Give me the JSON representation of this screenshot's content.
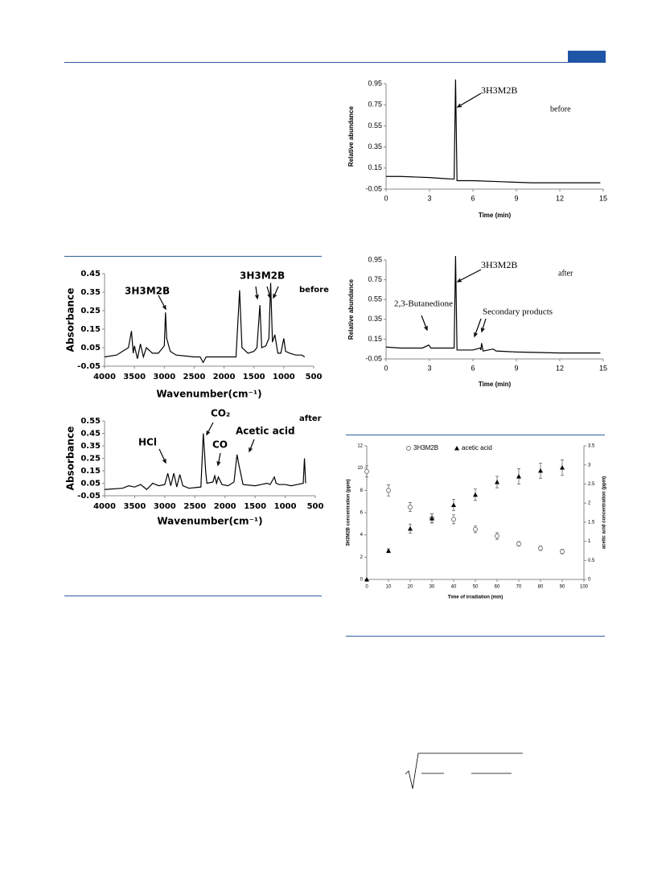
{
  "chart_data": [
    {
      "type": "line",
      "ylabel": "Absorbance",
      "xlabel": "Wavenumber(cm⁻¹)",
      "annotations": [
        "3H3M2B",
        "3H3M2B",
        "before"
      ],
      "xlim": [
        4000,
        500
      ],
      "xticks": [
        4000,
        3500,
        3000,
        2500,
        2000,
        1500,
        1000,
        500
      ],
      "ylim": [
        -0.05,
        0.45
      ],
      "yticks": [
        -0.05,
        0.05,
        0.15,
        0.25,
        0.35,
        0.45
      ],
      "x": [
        4000,
        3800,
        3700,
        3600,
        3550,
        3520,
        3500,
        3450,
        3400,
        3350,
        3300,
        3200,
        3100,
        3000,
        2980,
        2960,
        2900,
        2800,
        2500,
        2400,
        2350,
        2300,
        2000,
        1800,
        1740,
        1700,
        1600,
        1500,
        1450,
        1400,
        1370,
        1300,
        1250,
        1220,
        1190,
        1150,
        1100,
        1050,
        1000,
        970,
        900,
        800,
        700,
        650
      ],
      "series": [
        {
          "color": "#000000",
          "values": [
            0.0,
            0.01,
            0.03,
            0.05,
            0.14,
            0.02,
            0.06,
            -0.01,
            0.07,
            0.0,
            0.05,
            0.02,
            0.02,
            0.06,
            0.24,
            0.1,
            0.03,
            0.01,
            0.0,
            0.0,
            -0.03,
            0.0,
            0.0,
            0.0,
            0.36,
            0.05,
            0.02,
            0.03,
            0.05,
            0.28,
            0.05,
            0.06,
            0.1,
            0.4,
            0.08,
            0.12,
            0.02,
            0.02,
            0.1,
            0.03,
            0.02,
            0.01,
            0.01,
            0.0
          ]
        }
      ]
    },
    {
      "type": "line",
      "ylabel": "Absorbance",
      "xlabel": "Wavenumber(cm⁻¹)",
      "annotations": [
        "after",
        "CO₂",
        "CO",
        "HCl",
        "Acetic acid"
      ],
      "xlim": [
        4000,
        500
      ],
      "xticks": [
        4000,
        3500,
        3000,
        2500,
        2000,
        1500,
        1000,
        500
      ],
      "ylim": [
        -0.05,
        0.55
      ],
      "yticks": [
        -0.05,
        0.05,
        0.15,
        0.25,
        0.35,
        0.45,
        0.55
      ],
      "x": [
        4000,
        3700,
        3600,
        3500,
        3400,
        3300,
        3200,
        3100,
        3000,
        2950,
        2900,
        2850,
        2800,
        2750,
        2700,
        2600,
        2400,
        2360,
        2340,
        2320,
        2300,
        2200,
        2170,
        2140,
        2110,
        2050,
        1950,
        1850,
        1800,
        1770,
        1700,
        1500,
        1400,
        1300,
        1250,
        1180,
        1150,
        1100,
        1000,
        900,
        800,
        700,
        680,
        660
      ],
      "series": [
        {
          "color": "#000000",
          "values": [
            0.0,
            0.01,
            0.03,
            0.02,
            0.04,
            0.0,
            0.05,
            0.03,
            0.04,
            0.13,
            0.03,
            0.13,
            0.02,
            0.12,
            0.03,
            0.01,
            0.02,
            0.45,
            0.3,
            0.14,
            0.05,
            0.06,
            0.11,
            0.05,
            0.1,
            0.04,
            0.03,
            0.06,
            0.28,
            0.2,
            0.04,
            0.03,
            0.04,
            0.05,
            0.04,
            0.1,
            0.05,
            0.04,
            0.04,
            0.03,
            0.04,
            0.05,
            0.25,
            0.05
          ]
        }
      ]
    },
    {
      "type": "line",
      "ylabel": "Relative abundance",
      "xlabel": "Time (min)",
      "annotations": [
        "3H3M2B",
        "before"
      ],
      "xlim": [
        0,
        15
      ],
      "xticks": [
        0,
        3,
        6,
        9,
        12,
        15
      ],
      "ylim": [
        -0.05,
        0.95
      ],
      "yticks": [
        -0.05,
        0.15,
        0.35,
        0.55,
        0.75,
        0.95
      ],
      "x": [
        0,
        1,
        2,
        3,
        4,
        4.7,
        4.8,
        4.9,
        6,
        8,
        10,
        12,
        14.8
      ],
      "series": [
        {
          "color": "#000000",
          "values": [
            0.07,
            0.07,
            0.065,
            0.06,
            0.05,
            0.045,
            0.99,
            0.03,
            0.03,
            0.02,
            0.01,
            0.01,
            0.01
          ]
        }
      ]
    },
    {
      "type": "line",
      "ylabel": "Relative abundance",
      "xlabel": "Time (min)",
      "annotations": [
        "3H3M2B",
        "after",
        "2,3-Butanedione",
        "Secondary products"
      ],
      "xlim": [
        0,
        15
      ],
      "xticks": [
        0,
        3,
        6,
        9,
        12,
        15
      ],
      "ylim": [
        -0.05,
        0.95
      ],
      "yticks": [
        -0.05,
        0.15,
        0.35,
        0.55,
        0.75,
        0.95
      ],
      "x": [
        0,
        1,
        2.5,
        2.95,
        3.1,
        4.7,
        4.8,
        4.9,
        6,
        6.5,
        6.55,
        6.6,
        6.7,
        7.4,
        7.6,
        9,
        12,
        14.8
      ],
      "series": [
        {
          "color": "#000000",
          "values": [
            0.07,
            0.06,
            0.06,
            0.09,
            0.06,
            0.06,
            0.99,
            0.04,
            0.04,
            0.06,
            0.04,
            0.11,
            0.03,
            0.05,
            0.03,
            0.02,
            0.01,
            0.01
          ]
        }
      ]
    },
    {
      "type": "scatter",
      "xlabel": "Time of irradiation (min)",
      "ylabel": "3H3M2B concentration (ppm)",
      "y2label": "acetic acid concentration (ppm)",
      "xlim": [
        0,
        100
      ],
      "xticks": [
        0,
        10,
        20,
        30,
        40,
        50,
        60,
        70,
        80,
        90,
        100
      ],
      "ylim": [
        0,
        12
      ],
      "yticks": [
        0,
        2,
        4,
        6,
        8,
        10,
        12
      ],
      "y2lim": [
        0,
        3.5
      ],
      "y2ticks": [
        0,
        0.5,
        1,
        1.5,
        2,
        2.5,
        3,
        3.5
      ],
      "x": [
        0,
        10,
        20,
        30,
        40,
        50,
        60,
        70,
        80,
        90
      ],
      "series": [
        {
          "name": "3H3M2B",
          "color": "#777777",
          "marker": "circle-open",
          "values": [
            9.7,
            8.0,
            6.5,
            5.5,
            5.4,
            4.5,
            3.9,
            3.2,
            2.8,
            2.5
          ],
          "errors": [
            0.5,
            0.5,
            0.4,
            0.4,
            0.4,
            0.3,
            0.3,
            0.2,
            0.2,
            0.2
          ]
        },
        {
          "name": "acetic acid",
          "color": "#000000",
          "marker": "triangle",
          "axis": "y2",
          "values": [
            0,
            0.75,
            1.33,
            1.6,
            1.95,
            2.22,
            2.55,
            2.7,
            2.85,
            2.93
          ],
          "errors": [
            0,
            0.05,
            0.12,
            0.12,
            0.15,
            0.15,
            0.15,
            0.2,
            0.2,
            0.2
          ]
        }
      ]
    }
  ]
}
